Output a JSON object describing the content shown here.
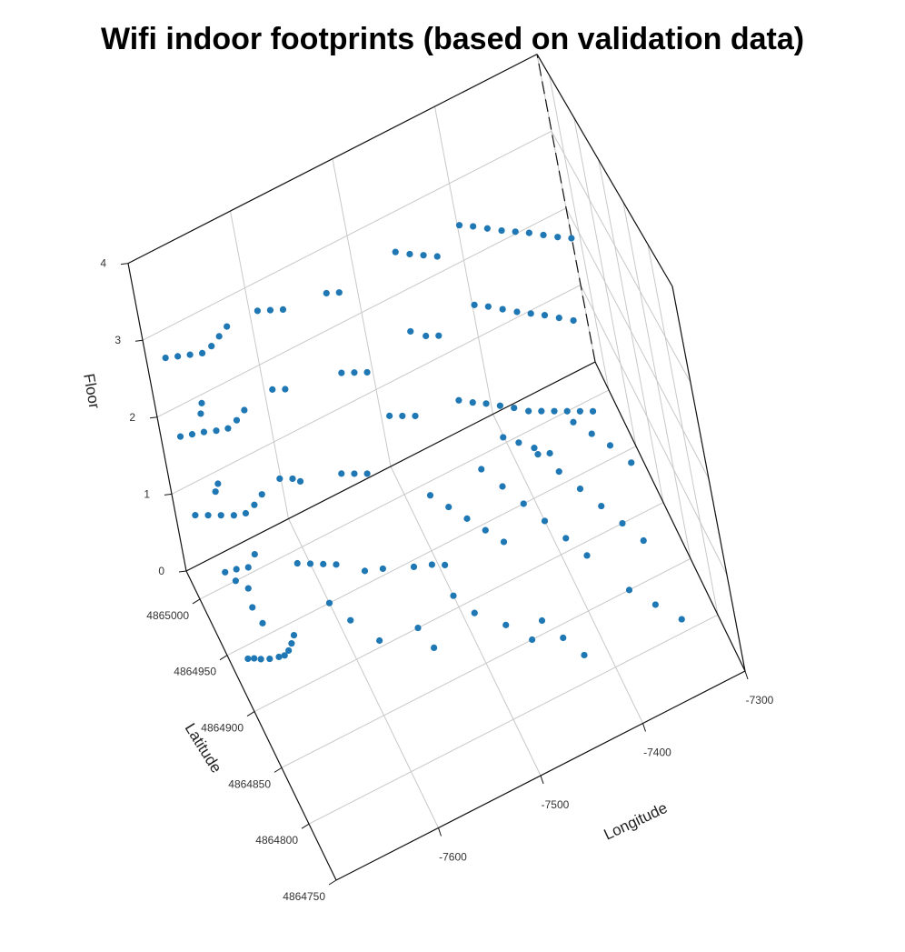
{
  "chart_data": {
    "type": "scatter3d",
    "title": "Wifi indoor footprints (based on validation data)",
    "xlabel": "Longitude",
    "ylabel": "Latitude",
    "zlabel": "Floor",
    "xlim": [
      -7700,
      -7300
    ],
    "ylim": [
      4864750,
      4865025
    ],
    "zlim": [
      0,
      4
    ],
    "x_ticks": [
      -7600,
      -7500,
      -7400,
      -7300
    ],
    "y_ticks": [
      4864750,
      4864800,
      4864850,
      4864900,
      4864950,
      4865000
    ],
    "z_ticks": [
      0,
      1,
      2,
      3,
      4
    ],
    "grid": true,
    "color": "#1f77b4",
    "point_groups": [
      {
        "z": 0,
        "points": [
          [
            -7685,
            4864940
          ],
          [
            -7680,
            4864938
          ],
          [
            -7675,
            4864935
          ],
          [
            -7668,
            4864932
          ],
          [
            -7660,
            4864930
          ],
          [
            -7655,
            4864929
          ],
          [
            -7650,
            4864931
          ],
          [
            -7645,
            4864935
          ],
          [
            -7640,
            4864940
          ],
          [
            -7660,
            4864960
          ],
          [
            -7662,
            4864975
          ],
          [
            -7658,
            4864990
          ],
          [
            -7650,
            4865005
          ],
          [
            -7640,
            4865012
          ],
          [
            -7665,
            4865000
          ],
          [
            -7660,
            4865008
          ],
          [
            -7670,
            4865010
          ],
          [
            -7610,
            4864990
          ],
          [
            -7600,
            4864985
          ],
          [
            -7590,
            4864980
          ],
          [
            -7580,
            4864975
          ],
          [
            -7600,
            4864950
          ],
          [
            -7590,
            4864930
          ],
          [
            -7575,
            4864905
          ],
          [
            -7560,
            4864960
          ],
          [
            -7545,
            4864955
          ],
          [
            -7520,
            4864945
          ],
          [
            -7505,
            4864940
          ],
          [
            -7495,
            4864935
          ],
          [
            -7540,
            4864900
          ],
          [
            -7535,
            4864880
          ],
          [
            -7480,
            4864990
          ],
          [
            -7470,
            4864975
          ],
          [
            -7460,
            4864960
          ],
          [
            -7450,
            4864945
          ],
          [
            -7440,
            4864930
          ],
          [
            -7500,
            4864910
          ],
          [
            -7490,
            4864890
          ],
          [
            -7470,
            4864870
          ],
          [
            -7455,
            4864850
          ],
          [
            -7430,
            4864990
          ],
          [
            -7420,
            4864970
          ],
          [
            -7410,
            4864950
          ],
          [
            -7400,
            4864930
          ],
          [
            -7390,
            4864910
          ],
          [
            -7380,
            4864890
          ],
          [
            -7440,
            4864860
          ],
          [
            -7430,
            4864840
          ],
          [
            -7420,
            4864820
          ],
          [
            -7380,
            4864980
          ],
          [
            -7370,
            4864960
          ],
          [
            -7360,
            4864940
          ],
          [
            -7350,
            4864920
          ],
          [
            -7340,
            4864900
          ],
          [
            -7330,
            4864880
          ],
          [
            -7360,
            4864850
          ],
          [
            -7345,
            4864830
          ],
          [
            -7330,
            4864810
          ],
          [
            -7340,
            4864990
          ],
          [
            -7330,
            4864975
          ],
          [
            -7320,
            4864960
          ],
          [
            -7310,
            4864940
          ]
        ]
      },
      {
        "z": 1,
        "points": [
          [
            -7690,
            4865000
          ],
          [
            -7680,
            4864995
          ],
          [
            -7670,
            4864990
          ],
          [
            -7660,
            4864985
          ],
          [
            -7650,
            4864982
          ],
          [
            -7640,
            4864985
          ],
          [
            -7630,
            4864990
          ],
          [
            -7665,
            4865010
          ],
          [
            -7660,
            4865015
          ],
          [
            -7610,
            4864995
          ],
          [
            -7600,
            4864990
          ],
          [
            -7595,
            4864985
          ],
          [
            -7560,
            4864975
          ],
          [
            -7550,
            4864970
          ],
          [
            -7540,
            4864965
          ],
          [
            -7500,
            4865000
          ],
          [
            -7490,
            4864995
          ],
          [
            -7480,
            4864990
          ],
          [
            -7440,
            4864985
          ],
          [
            -7430,
            4864978
          ],
          [
            -7420,
            4864972
          ],
          [
            -7410,
            4864965
          ],
          [
            -7400,
            4864958
          ],
          [
            -7390,
            4864950
          ],
          [
            -7380,
            4864945
          ],
          [
            -7370,
            4864940
          ],
          [
            -7360,
            4864935
          ],
          [
            -7350,
            4864930
          ],
          [
            -7340,
            4864925
          ],
          [
            -7420,
            4864940
          ],
          [
            -7410,
            4864930
          ],
          [
            -7400,
            4864920
          ],
          [
            -7390,
            4864910
          ]
        ]
      },
      {
        "z": 2,
        "points": [
          [
            -7690,
            4865000
          ],
          [
            -7680,
            4864997
          ],
          [
            -7670,
            4864994
          ],
          [
            -7660,
            4864990
          ],
          [
            -7650,
            4864987
          ],
          [
            -7640,
            4864990
          ],
          [
            -7630,
            4864995
          ],
          [
            -7665,
            4865010
          ],
          [
            -7660,
            4865018
          ],
          [
            -7600,
            4865000
          ],
          [
            -7590,
            4864995
          ],
          [
            -7540,
            4864985
          ],
          [
            -7530,
            4864980
          ],
          [
            -7520,
            4864975
          ],
          [
            -7470,
            4864990
          ],
          [
            -7460,
            4864980
          ],
          [
            -7450,
            4864975
          ],
          [
            -7410,
            4864985
          ],
          [
            -7400,
            4864978
          ],
          [
            -7390,
            4864970
          ],
          [
            -7380,
            4864962
          ],
          [
            -7370,
            4864955
          ],
          [
            -7360,
            4864948
          ],
          [
            -7350,
            4864940
          ],
          [
            -7340,
            4864932
          ]
        ]
      },
      {
        "z": 3,
        "points": [
          [
            -7690,
            4865000
          ],
          [
            -7680,
            4864996
          ],
          [
            -7670,
            4864992
          ],
          [
            -7660,
            4864988
          ],
          [
            -7650,
            4864990
          ],
          [
            -7640,
            4864995
          ],
          [
            -7630,
            4865000
          ],
          [
            -7600,
            4865000
          ],
          [
            -7590,
            4864995
          ],
          [
            -7580,
            4864990
          ],
          [
            -7540,
            4864985
          ],
          [
            -7530,
            4864980
          ],
          [
            -7470,
            4864990
          ],
          [
            -7460,
            4864982
          ],
          [
            -7450,
            4864975
          ],
          [
            -7440,
            4864968
          ],
          [
            -7410,
            4864985
          ],
          [
            -7400,
            4864978
          ],
          [
            -7390,
            4864970
          ],
          [
            -7380,
            4864962
          ],
          [
            -7370,
            4864955
          ],
          [
            -7360,
            4864948
          ],
          [
            -7350,
            4864940
          ],
          [
            -7340,
            4864932
          ],
          [
            -7330,
            4864925
          ]
        ]
      }
    ]
  }
}
